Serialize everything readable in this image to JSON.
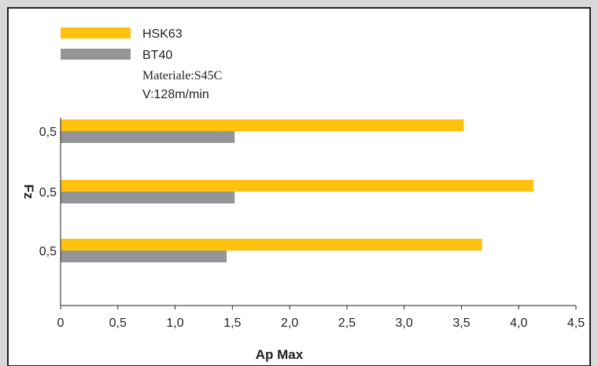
{
  "chart_data": {
    "type": "bar",
    "orientation": "horizontal",
    "categories": [
      "0,5",
      "0,5",
      "0,5"
    ],
    "series": [
      {
        "name": "HSK63",
        "color": "#fec10e",
        "values": [
          3.52,
          4.13,
          3.68
        ]
      },
      {
        "name": "BT40",
        "color": "#939598",
        "values": [
          1.52,
          1.52,
          1.45
        ]
      }
    ],
    "xlim": [
      0,
      4.5
    ],
    "xticks": [
      "0",
      "0,5",
      "1,0",
      "1,5",
      "2,0",
      "2,5",
      "3,0",
      "3,5",
      "4,0",
      "4,5"
    ],
    "xlabel": "Ap Max",
    "ylabel": "Fz",
    "annotations": [
      "Materiale:S45C",
      "V:128m/min"
    ],
    "legend_position": "top-left",
    "grid": false
  }
}
